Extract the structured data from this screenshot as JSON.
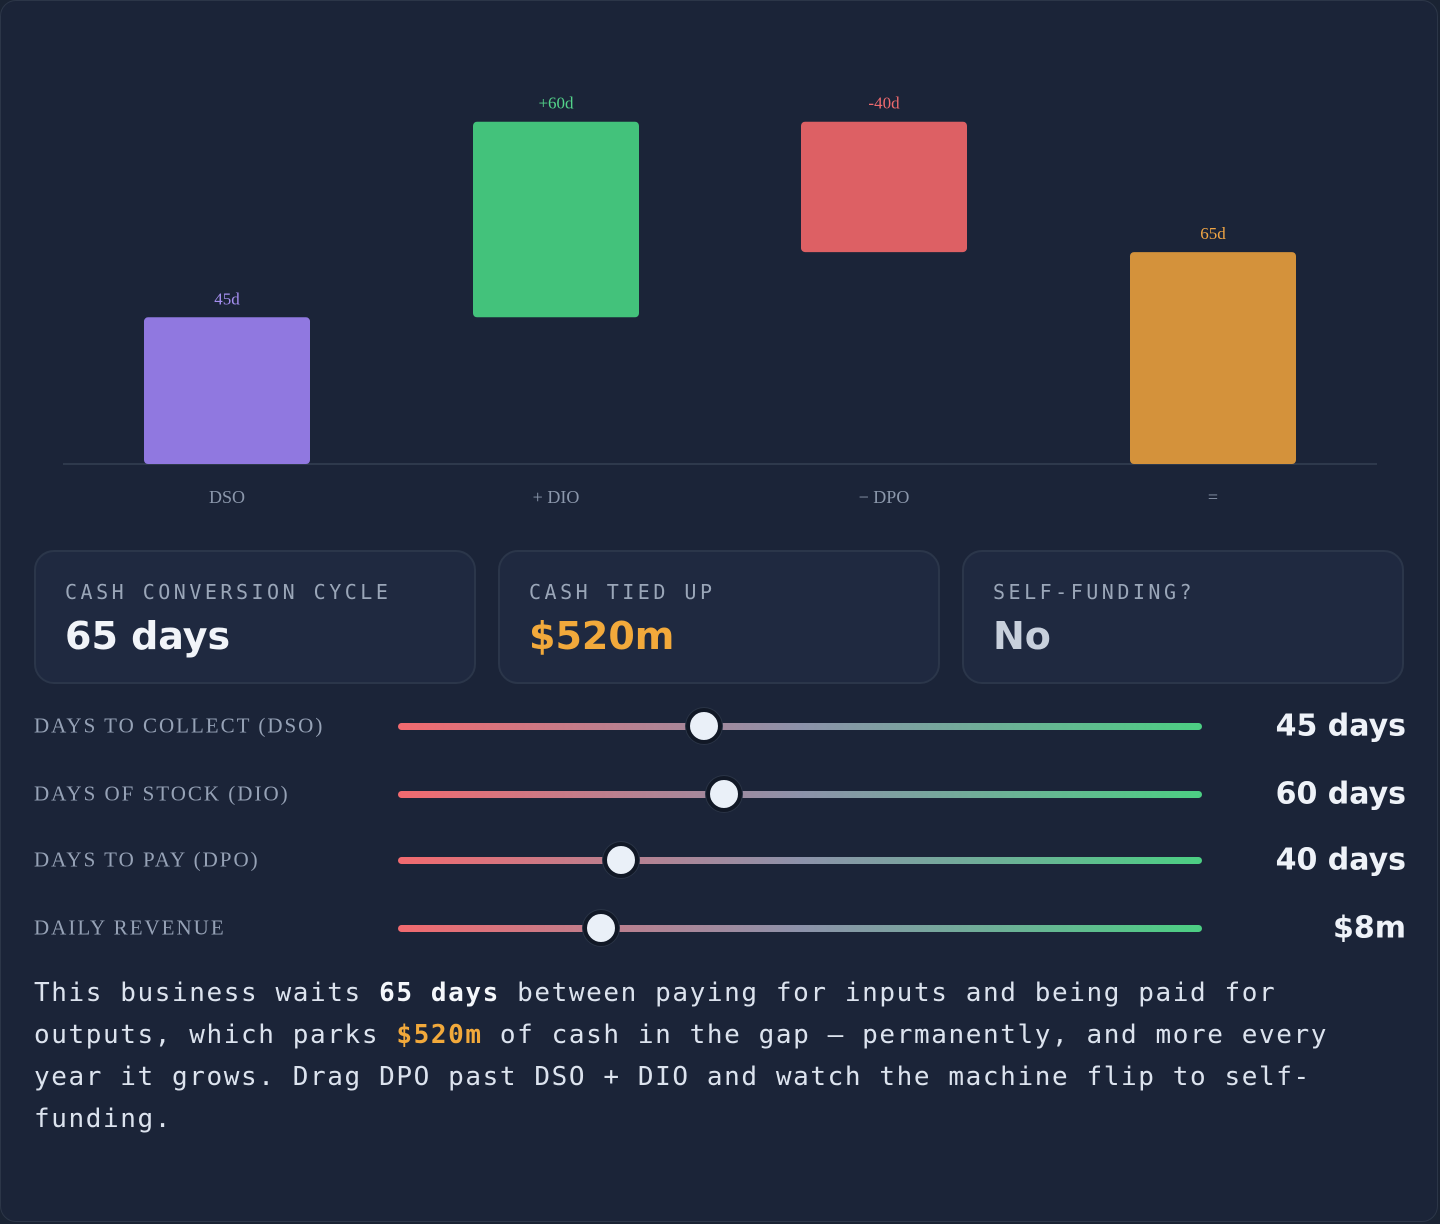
{
  "chart_data": {
    "type": "waterfall",
    "categories": [
      "DSO",
      "+ DIO",
      "− DPO",
      "="
    ],
    "values": [
      45,
      60,
      -40,
      65
    ],
    "data_labels": [
      "45d",
      "+60d",
      "-40d",
      "65d"
    ],
    "colors": [
      "#9078e0",
      "#43c27b",
      "#dd6064",
      "#d4923b"
    ],
    "label_colors": [
      "#a58ff0",
      "#53d38a",
      "#ee6a6e",
      "#f0a544"
    ],
    "ylim": [
      0,
      120
    ]
  },
  "cards": [
    {
      "label": "CASH CONVERSION CYCLE",
      "value": "65 days",
      "color": "#f1f4f9"
    },
    {
      "label": "CASH TIED UP",
      "value": "$520m",
      "color": "#f2a93b"
    },
    {
      "label": "SELF-FUNDING?",
      "value": "No",
      "color": "#c8d0dc"
    }
  ],
  "sliders": [
    {
      "label": "DAYS TO COLLECT (DSO)",
      "value_text": "45 days",
      "fraction": 0.38
    },
    {
      "label": "DAYS OF STOCK (DIO)",
      "value_text": "60 days",
      "fraction": 0.405
    },
    {
      "label": "DAYS TO PAY (DPO)",
      "value_text": "40 days",
      "fraction": 0.277
    },
    {
      "label": "DAILY REVENUE",
      "value_text": "$8m",
      "fraction": 0.253
    }
  ],
  "explanation": {
    "part1": "This business waits ",
    "days": "65 days",
    "part2": " between paying for inputs and being paid for outputs, which parks ",
    "cash": "$520m",
    "part3": " of cash in the gap — permanently, and more every year it grows. Drag DPO past DSO + DIO and watch the machine flip to self-funding."
  }
}
